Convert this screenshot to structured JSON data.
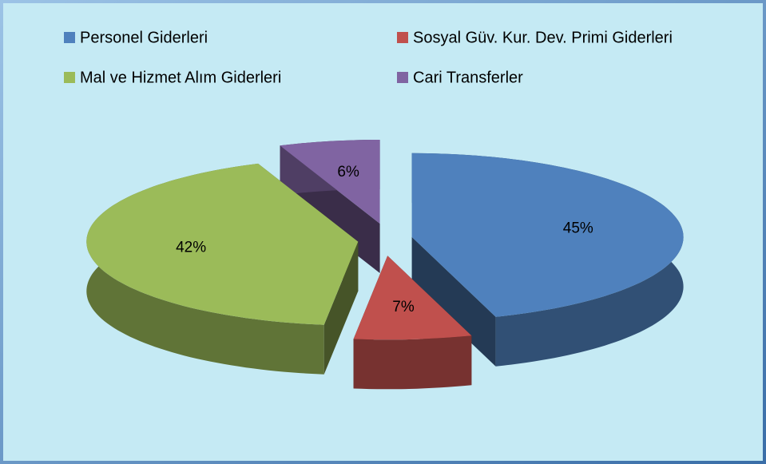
{
  "chart_data": {
    "type": "pie3d",
    "categories": [
      "Personel Giderleri",
      "Sosyal Güv. Kur. Dev. Primi Giderleri",
      "Mal ve Hizmet Alım Giderleri",
      "Cari Transferler"
    ],
    "values": [
      45,
      7,
      42,
      6
    ],
    "value_labels": [
      "45%",
      "7%",
      "42%",
      "6%"
    ],
    "colors": [
      "#4f81bd",
      "#c0504d",
      "#9bbb59",
      "#8064a2"
    ],
    "legend": "top"
  }
}
